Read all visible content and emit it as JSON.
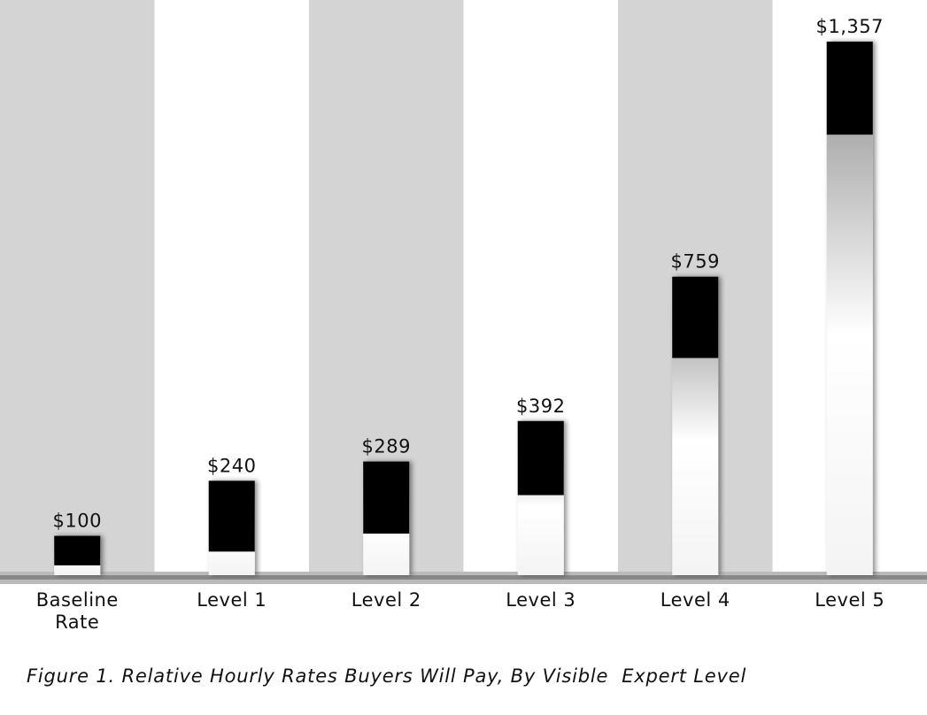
{
  "chart_data": {
    "type": "bar",
    "title": "Figure 1. Relative Hourly Rates Buyers Will Pay, By Visible  Expert Level",
    "categories": [
      "Baseline Rate",
      "Level 1",
      "Level 2",
      "Level 3",
      "Level 4",
      "Level 5"
    ],
    "values": [
      100,
      240,
      289,
      392,
      759,
      1357
    ],
    "value_labels": [
      "$100",
      "$240",
      "$289",
      "$392",
      "$759",
      "$1,357"
    ],
    "color": "#000000"
  }
}
